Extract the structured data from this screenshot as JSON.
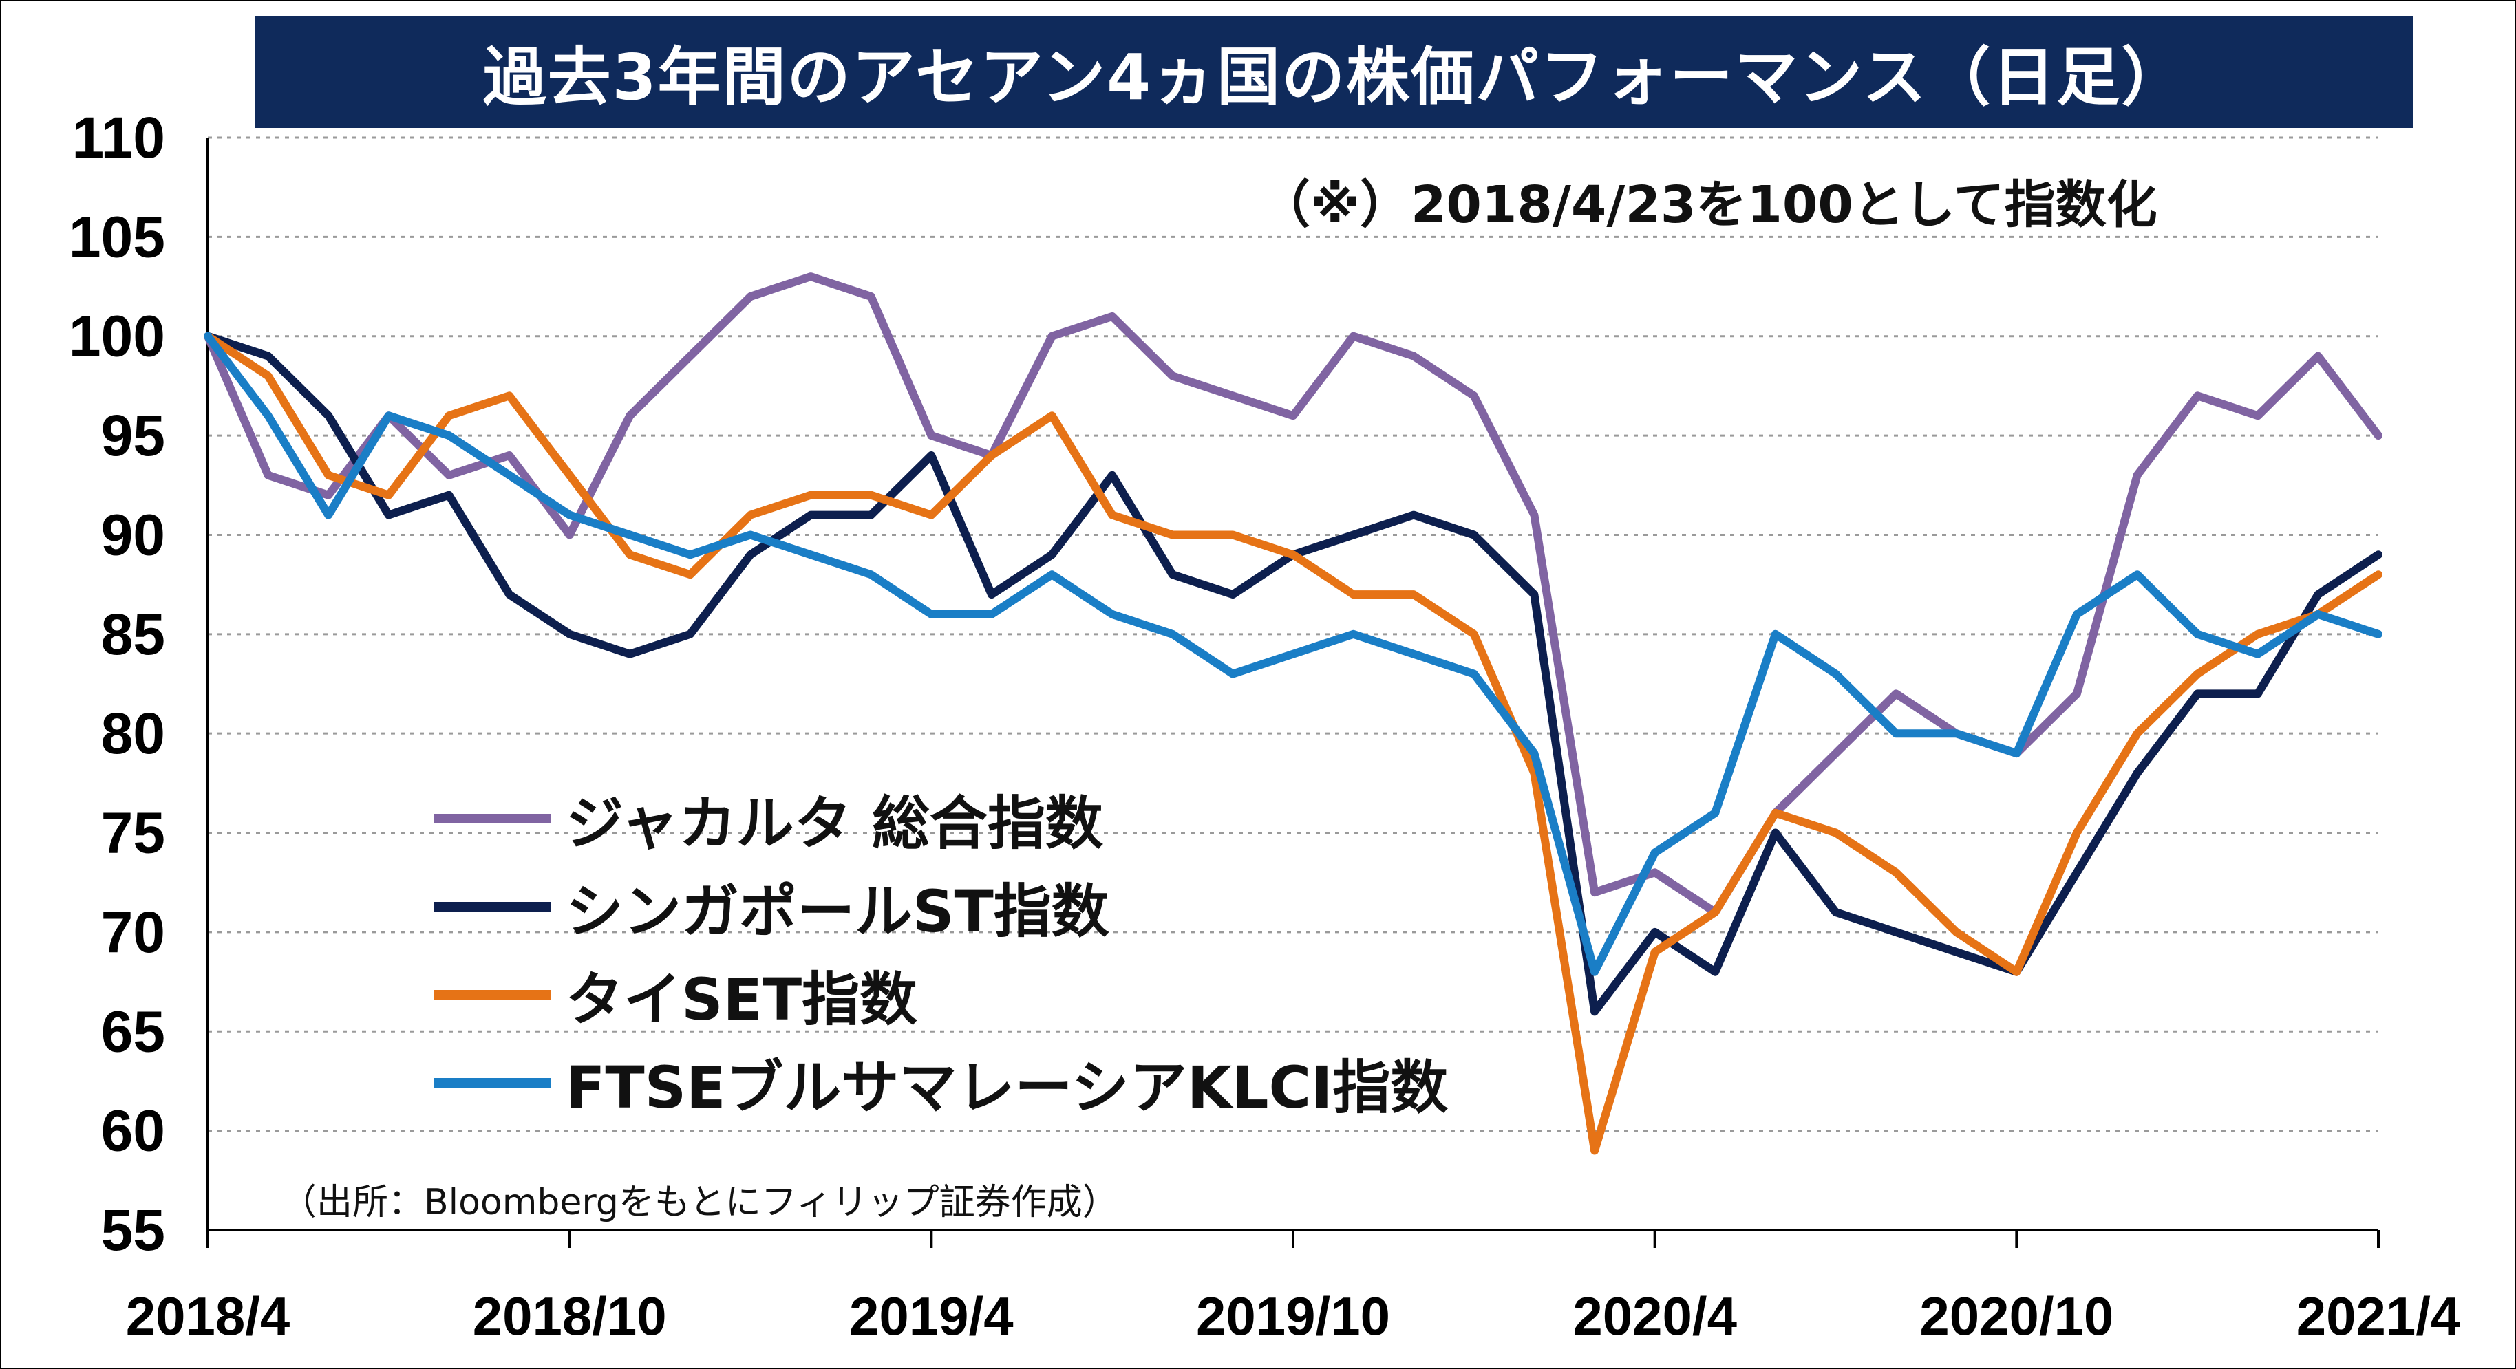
{
  "chart_data": {
    "type": "line",
    "title": "過去3年間のアセアン4ヵ国の株価パフォーマンス（日足）",
    "note": "（※）2018/4/23を100として指数化",
    "source": "（出所：Bloombergをもとにフィリップ証券作成）",
    "ylim": [
      55,
      110
    ],
    "y_ticks": [
      "110",
      "105",
      "100",
      "95",
      "90",
      "85",
      "80",
      "75",
      "70",
      "65",
      "60",
      "55"
    ],
    "x_ticks": [
      "2018/4",
      "2018/10",
      "2019/4",
      "2019/10",
      "2020/4",
      "2020/10",
      "2021/4"
    ],
    "grid": true,
    "legend_position": "lower-left",
    "x": [
      "2018/4",
      "2018/5",
      "2018/6",
      "2018/7",
      "2018/8",
      "2018/9",
      "2018/10",
      "2018/11",
      "2018/12",
      "2019/1",
      "2019/2",
      "2019/3",
      "2019/4",
      "2019/5",
      "2019/6",
      "2019/7",
      "2019/8",
      "2019/9",
      "2019/10",
      "2019/11",
      "2019/12",
      "2020/1",
      "2020/2",
      "2020/3",
      "2020/4",
      "2020/5",
      "2020/6",
      "2020/7",
      "2020/8",
      "2020/9",
      "2020/10",
      "2020/11",
      "2020/12",
      "2021/1",
      "2021/2",
      "2021/3",
      "2021/4"
    ],
    "series": [
      {
        "name": "ジャカルタ 総合指数",
        "color": "#8064a2",
        "values": [
          100,
          93,
          92,
          96,
          93,
          94,
          90,
          96,
          99,
          102,
          103,
          102,
          95,
          94,
          100,
          101,
          98,
          97,
          96,
          100,
          99,
          97,
          91,
          72,
          73,
          71,
          76,
          79,
          82,
          80,
          79,
          82,
          93,
          97,
          96,
          99,
          95
        ]
      },
      {
        "name": "シンガポールST指数",
        "color": "#0d1f4e",
        "values": [
          100,
          99,
          96,
          91,
          92,
          87,
          85,
          84,
          85,
          89,
          91,
          91,
          94,
          87,
          89,
          93,
          88,
          87,
          89,
          90,
          91,
          90,
          87,
          66,
          70,
          68,
          75,
          71,
          70,
          69,
          68,
          73,
          78,
          82,
          82,
          87,
          89
        ]
      },
      {
        "name": "タイSET指数",
        "color": "#e67316",
        "values": [
          100,
          98,
          93,
          92,
          96,
          97,
          93,
          89,
          88,
          91,
          92,
          92,
          91,
          94,
          96,
          91,
          90,
          90,
          89,
          87,
          87,
          85,
          78,
          59,
          69,
          71,
          76,
          75,
          73,
          70,
          68,
          75,
          80,
          83,
          85,
          86,
          88
        ]
      },
      {
        "name": "FTSEブルサマレーシアKLCI指数",
        "color": "#1a7ec6",
        "values": [
          100,
          96,
          91,
          96,
          95,
          93,
          91,
          90,
          89,
          90,
          89,
          88,
          86,
          86,
          88,
          86,
          85,
          83,
          84,
          85,
          84,
          83,
          79,
          68,
          74,
          76,
          85,
          83,
          80,
          80,
          79,
          86,
          88,
          85,
          84,
          86,
          85
        ]
      }
    ]
  }
}
